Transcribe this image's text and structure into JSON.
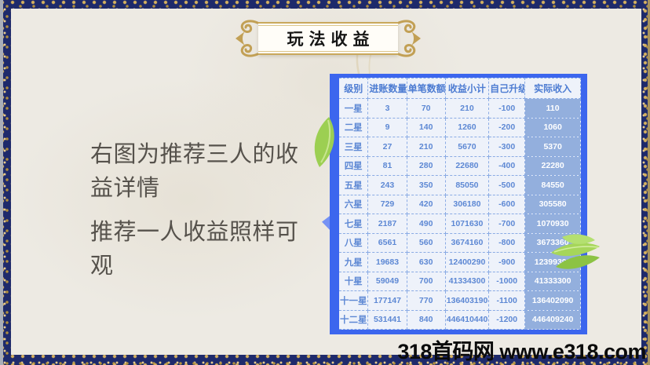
{
  "banner": {
    "title": "玩法收益"
  },
  "left_text": {
    "para1": "右图为推荐三人的收益详情",
    "para2": "推荐一人收益照样可观"
  },
  "table": {
    "headers": [
      "级别",
      "进账数量",
      "单笔数额",
      "收益小计",
      "自己升级",
      "实际收入"
    ],
    "rows": [
      [
        "一星",
        "3",
        "70",
        "210",
        "-100",
        "110"
      ],
      [
        "二星",
        "9",
        "140",
        "1260",
        "-200",
        "1060"
      ],
      [
        "三星",
        "27",
        "210",
        "5670",
        "-300",
        "5370"
      ],
      [
        "四星",
        "81",
        "280",
        "22680",
        "-400",
        "22280"
      ],
      [
        "五星",
        "243",
        "350",
        "85050",
        "-500",
        "84550"
      ],
      [
        "六星",
        "729",
        "420",
        "306180",
        "-600",
        "305580"
      ],
      [
        "七星",
        "2187",
        "490",
        "1071630",
        "-700",
        "1070930"
      ],
      [
        "八星",
        "6561",
        "560",
        "3674160",
        "-800",
        "3673360"
      ],
      [
        "九星",
        "19683",
        "630",
        "12400290",
        "-900",
        "12399390"
      ],
      [
        "十星",
        "59049",
        "700",
        "41334300",
        "-1000",
        "41333300"
      ],
      [
        "十一星",
        "177147",
        "770",
        "136403190",
        "-1100",
        "136402090"
      ],
      [
        "十二星",
        "531441",
        "840",
        "446410440",
        "-1200",
        "446409240"
      ]
    ]
  },
  "watermark": "318首码网 www.e318.com",
  "icons": {
    "ornament_left": "scroll-ornament-left-icon",
    "ornament_right": "scroll-ornament-right-icon",
    "leaf_left": "leaf-icon",
    "leaf_right": "leaves-icon"
  },
  "colors": {
    "border_navy": "#1e2a6b",
    "border_gold": "#d8b35e",
    "content_beige": "#edeae3",
    "panel_blue": "#3c66ee",
    "table_bg": "#eef2fa",
    "table_text_blue": "#5d88d4",
    "highlight_col_bg": "#93afdd",
    "highlight_col_text": "#ffffff",
    "banner_gold": "#c9a85c",
    "description_text": "#56524c",
    "watermark_text": "#0b0b0b"
  }
}
